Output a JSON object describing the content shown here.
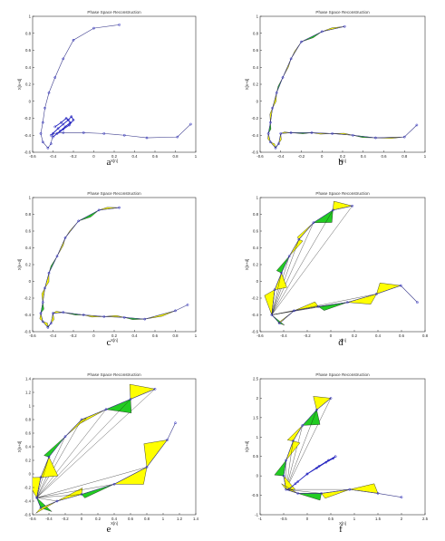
{
  "figure": {
    "colors": {
      "fill_primary": "#ffff00",
      "fill_secondary": "#22cc22",
      "line": "#1a1a1a",
      "marker": "#1f1fbf",
      "path": "#3a3a8c"
    },
    "panels": [
      {
        "label": "a",
        "title": "Phase Space Reconstruction",
        "xlabel": "X[n]",
        "ylabel": "X[n+d]",
        "xticks": [
          "-0.6",
          "-0.4",
          "-0.2",
          "0",
          "0.2",
          "0.4",
          "0.6",
          "0.8",
          "1"
        ],
        "yticks": [
          "-0.6",
          "-0.4",
          "-0.2",
          "0",
          "0.2",
          "0.4",
          "0.6",
          "0.8",
          "1"
        ]
      },
      {
        "label": "b",
        "title": "Phase Space Reconstruction",
        "xlabel": "X[n]",
        "ylabel": "X[n+d]",
        "xticks": [
          "-0.6",
          "-0.4",
          "-0.2",
          "0",
          "0.2",
          "0.4",
          "0.6",
          "0.8",
          "1"
        ],
        "yticks": [
          "-0.6",
          "-0.4",
          "-0.2",
          "0",
          "0.2",
          "0.4",
          "0.6",
          "0.8",
          "1"
        ]
      },
      {
        "label": "c",
        "title": "Phase Space Reconstruction",
        "xlabel": "X[n]",
        "ylabel": "X[n+d]",
        "xticks": [
          "-0.6",
          "-0.4",
          "-0.2",
          "0",
          "0.2",
          "0.4",
          "0.6",
          "0.8",
          "1"
        ],
        "yticks": [
          "-0.6",
          "-0.4",
          "-0.2",
          "0",
          "0.2",
          "0.4",
          "0.6",
          "0.8",
          "1"
        ]
      },
      {
        "label": "d",
        "title": "Phase Space Reconstruction",
        "xlabel": "X[n]",
        "ylabel": "X[n+d]",
        "xticks": [
          "-0.6",
          "-0.4",
          "-0.2",
          "0",
          "0.2",
          "0.4",
          "0.6",
          "0.8"
        ],
        "yticks": [
          "-0.6",
          "-0.4",
          "-0.2",
          "0",
          "0.2",
          "0.4",
          "0.6",
          "0.8",
          "1"
        ]
      },
      {
        "label": "e",
        "title": "Phase Space Reconstruction",
        "xlabel": "X[n]",
        "ylabel": "X[n+d]",
        "xticks": [
          "-0.6",
          "-0.4",
          "-0.2",
          "0",
          "0.2",
          "0.4",
          "0.6",
          "0.8",
          "1",
          "1.2",
          "1.4"
        ],
        "yticks": [
          "-0.6",
          "-0.4",
          "-0.2",
          "0",
          "0.2",
          "0.4",
          "0.6",
          "0.8",
          "1",
          "1.2",
          "1.4"
        ]
      },
      {
        "label": "f",
        "title": "Phase Space Reconstruction",
        "xlabel": "X[n]",
        "ylabel": "X[n+d]",
        "xticks": [
          "-1",
          "-0.5",
          "0",
          "0.5",
          "1",
          "1.5",
          "2",
          "2.5"
        ],
        "yticks": [
          "-1",
          "-0.5",
          "0",
          "0.5",
          "1",
          "1.5",
          "2",
          "2.5"
        ]
      }
    ]
  },
  "chart_data": [
    {
      "type": "line",
      "panel": "a",
      "title": "Phase Space Reconstruction",
      "xlabel": "X[n]",
      "ylabel": "X[n+d]",
      "xlim": [
        -0.6,
        1.0
      ],
      "ylim": [
        -0.6,
        1.0
      ],
      "grid": false,
      "series": [
        {
          "x": [
            0.25,
            0.0,
            -0.2,
            -0.3,
            -0.38,
            -0.44,
            -0.48,
            -0.5,
            -0.52,
            -0.5,
            -0.45,
            -0.42,
            -0.4,
            -0.3,
            -0.1,
            0.1,
            0.3,
            0.52,
            0.82,
            0.95
          ],
          "y": [
            0.9,
            0.86,
            0.72,
            0.5,
            0.28,
            0.1,
            -0.08,
            -0.25,
            -0.38,
            -0.48,
            -0.55,
            -0.5,
            -0.38,
            -0.37,
            -0.37,
            -0.38,
            -0.4,
            -0.43,
            -0.42,
            -0.27
          ]
        },
        {
          "x": [
            -0.42,
            -0.35,
            -0.3,
            -0.25,
            -0.22,
            -0.2,
            -0.24,
            -0.3,
            -0.36,
            -0.4,
            -0.33,
            -0.28,
            -0.23,
            -0.27,
            -0.32,
            -0.38
          ],
          "y": [
            -0.4,
            -0.32,
            -0.27,
            -0.22,
            -0.18,
            -0.22,
            -0.28,
            -0.33,
            -0.38,
            -0.42,
            -0.35,
            -0.3,
            -0.25,
            -0.2,
            -0.25,
            -0.3
          ]
        }
      ]
    },
    {
      "type": "line",
      "panel": "b",
      "title": "Phase Space Reconstruction",
      "xlabel": "X[n]",
      "ylabel": "X[n+d]",
      "xlim": [
        -0.6,
        1.0
      ],
      "ylim": [
        -0.6,
        1.0
      ],
      "grid": false,
      "series": [
        {
          "x": [
            0.22,
            0.0,
            -0.2,
            -0.3,
            -0.38,
            -0.44,
            -0.48,
            -0.5,
            -0.52,
            -0.5,
            -0.45,
            -0.42,
            -0.4,
            -0.3,
            -0.1,
            0.1,
            0.3,
            0.52,
            0.8,
            0.92
          ],
          "y": [
            0.88,
            0.82,
            0.7,
            0.5,
            0.28,
            0.1,
            -0.08,
            -0.25,
            -0.38,
            -0.48,
            -0.55,
            -0.5,
            -0.38,
            -0.37,
            -0.37,
            -0.38,
            -0.4,
            -0.43,
            -0.42,
            -0.28
          ]
        }
      ]
    },
    {
      "type": "line",
      "panel": "c",
      "title": "Phase Space Reconstruction",
      "xlabel": "X[n]",
      "ylabel": "X[n+d]",
      "xlim": [
        -0.6,
        1.0
      ],
      "ylim": [
        -0.6,
        1.0
      ],
      "grid": false,
      "series": [
        {
          "x": [
            0.25,
            0.05,
            -0.15,
            -0.28,
            -0.36,
            -0.44,
            -0.48,
            -0.5,
            -0.52,
            -0.5,
            -0.45,
            -0.42,
            -0.4,
            -0.3,
            -0.1,
            0.1,
            0.3,
            0.5,
            0.8,
            0.92
          ],
          "y": [
            0.88,
            0.85,
            0.72,
            0.52,
            0.3,
            0.1,
            -0.08,
            -0.25,
            -0.38,
            -0.48,
            -0.55,
            -0.5,
            -0.38,
            -0.37,
            -0.4,
            -0.42,
            -0.43,
            -0.45,
            -0.35,
            -0.28
          ]
        }
      ]
    },
    {
      "type": "line",
      "panel": "d",
      "title": "Phase Space Reconstruction",
      "xlabel": "X[n]",
      "ylabel": "X[n+d]",
      "xlim": [
        -0.7,
        1.0
      ],
      "ylim": [
        -0.6,
        1.0
      ],
      "grid": false,
      "series": [
        {
          "x": [
            0.25,
            0.05,
            -0.15,
            -0.3,
            -0.4,
            -0.48,
            -0.55,
            -0.58,
            -0.5,
            -0.35,
            -0.1,
            0.2,
            0.5,
            0.75,
            0.92
          ],
          "y": [
            0.9,
            0.85,
            0.7,
            0.5,
            0.3,
            0.1,
            -0.1,
            -0.4,
            -0.5,
            -0.35,
            -0.3,
            -0.25,
            -0.15,
            -0.05,
            -0.25
          ]
        }
      ]
    },
    {
      "type": "line",
      "panel": "e",
      "title": "Phase Space Reconstruction",
      "xlabel": "X[n]",
      "ylabel": "X[n+d]",
      "xlim": [
        -0.6,
        1.4
      ],
      "ylim": [
        -0.6,
        1.4
      ],
      "grid": false,
      "series": [
        {
          "x": [
            0.9,
            0.6,
            0.3,
            0.0,
            -0.2,
            -0.4,
            -0.5,
            -0.55,
            -0.5,
            -0.3,
            0.0,
            0.4,
            0.8,
            1.05,
            1.15
          ],
          "y": [
            1.25,
            1.1,
            0.95,
            0.8,
            0.55,
            0.25,
            -0.05,
            -0.35,
            -0.5,
            -0.4,
            -0.3,
            -0.15,
            0.1,
            0.5,
            0.75
          ]
        }
      ]
    },
    {
      "type": "line",
      "panel": "f",
      "title": "Phase Space Reconstruction",
      "xlabel": "X[n]",
      "ylabel": "X[n+d]",
      "xlim": [
        -1.0,
        2.5
      ],
      "ylim": [
        -1.0,
        2.5
      ],
      "grid": false,
      "series": [
        {
          "x": [
            0.5,
            0.2,
            -0.1,
            -0.3,
            -0.45,
            -0.5,
            -0.45,
            -0.2,
            0.3,
            0.9,
            1.5,
            2.0
          ],
          "y": [
            2.0,
            1.7,
            1.3,
            0.9,
            0.4,
            0.0,
            -0.35,
            -0.45,
            -0.45,
            -0.35,
            -0.45,
            -0.55
          ]
        },
        {
          "x": [
            -0.4,
            -0.2,
            0.0,
            0.2,
            0.4,
            0.55,
            0.6,
            0.45,
            0.25,
            0.0,
            -0.25
          ],
          "y": [
            -0.35,
            -0.15,
            0.05,
            0.2,
            0.35,
            0.45,
            0.5,
            0.4,
            0.25,
            0.05,
            -0.2
          ]
        }
      ]
    }
  ]
}
